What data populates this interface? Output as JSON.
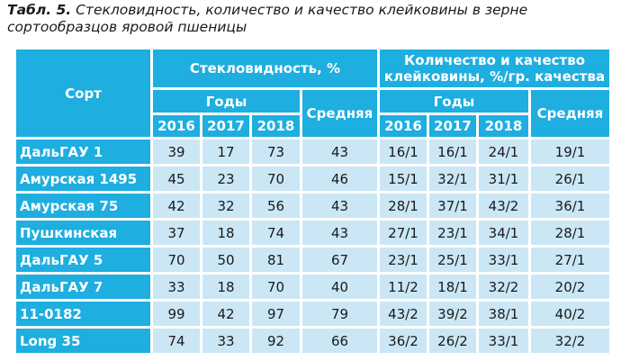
{
  "caption": {
    "label": "Табл. 5.",
    "text": " Стекловидность, количество и качество клейковины в зерне сортообразцов яровой пшеницы"
  },
  "headers": {
    "variety": "Сорт",
    "vitreousness": "Стекловидность, %",
    "gluten": "Количество и качество клейковины, %/гр. качества",
    "years": "Годы",
    "years2": "Годы",
    "y2016": "2016",
    "y2017": "2017",
    "y2018": "2018",
    "y2016b": "2016",
    "y2017b": "2017",
    "y2018b": "2018",
    "mean": "Средняя",
    "mean2": "Средняя"
  },
  "rows": [
    {
      "name": "ДальГАУ 1",
      "v": [
        "39",
        "17",
        "73",
        "43"
      ],
      "g": [
        "16/1",
        "16/1",
        "24/1",
        "19/1"
      ]
    },
    {
      "name": "Амурская 1495",
      "v": [
        "45",
        "23",
        "70",
        "46"
      ],
      "g": [
        "15/1",
        "32/1",
        "31/1",
        "26/1"
      ]
    },
    {
      "name": "Амурская 75",
      "v": [
        "42",
        "32",
        "56",
        "43"
      ],
      "g": [
        "28/1",
        "37/1",
        "43/2",
        "36/1"
      ]
    },
    {
      "name": "Пушкинская",
      "v": [
        "37",
        "18",
        "74",
        "43"
      ],
      "g": [
        "27/1",
        "23/1",
        "34/1",
        "28/1"
      ]
    },
    {
      "name": "ДальГАУ 5",
      "v": [
        "70",
        "50",
        "81",
        "67"
      ],
      "g": [
        "23/1",
        "25/1",
        "33/1",
        "27/1"
      ]
    },
    {
      "name": "ДальГАУ 7",
      "v": [
        "33",
        "18",
        "70",
        "40"
      ],
      "g": [
        "11/2",
        "18/1",
        "32/2",
        "20/2"
      ]
    },
    {
      "name": "11-0182",
      "v": [
        "99",
        "42",
        "97",
        "79"
      ],
      "g": [
        "43/2",
        "39/2",
        "38/1",
        "40/2"
      ]
    },
    {
      "name": "Long 35",
      "v": [
        "74",
        "33",
        "92",
        "66"
      ],
      "g": [
        "36/2",
        "26/2",
        "33/1",
        "32/2"
      ]
    }
  ],
  "colors": {
    "header": "#1eaee0",
    "cell": "#cbe7f5"
  }
}
